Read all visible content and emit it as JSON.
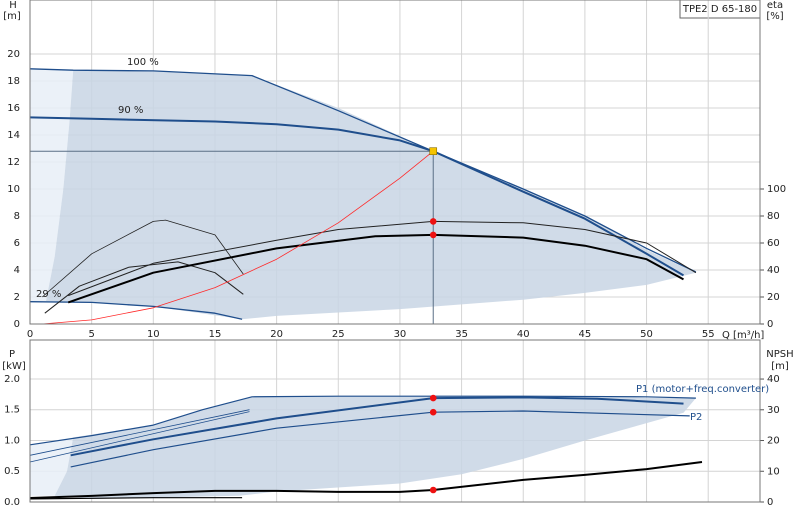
{
  "product": "TPE2 D 65-180",
  "chart_data": [
    {
      "type": "line",
      "y_label": "H",
      "y_unit": "[m]",
      "y2_label": "eta",
      "y2_unit": "[%]",
      "x_label": "Q [m³/h]",
      "xlim": [
        0,
        59.2
      ],
      "xticks": [
        0,
        5,
        10,
        15,
        20,
        25,
        30,
        35,
        40,
        45,
        50,
        55
      ],
      "xtick_labels": true,
      "ylim": [
        0,
        24
      ],
      "yticks": [
        0,
        2,
        4,
        6,
        8,
        10,
        12,
        14,
        16,
        18,
        20
      ],
      "y2lim": [
        0,
        240
      ],
      "y2ticks": [
        0,
        20,
        40,
        60,
        80,
        100
      ],
      "grid": true,
      "series": [
        {
          "color": "#e8eff7",
          "fill": true,
          "x": [
            0,
            3.5,
            3.2,
            2.7,
            2,
            1.3,
            0
          ],
          "values": [
            18.9,
            18.8,
            15,
            10,
            5,
            1.7,
            1.7
          ]
        },
        {
          "color": "#c8d5e4",
          "fill": true,
          "x": [
            3.5,
            10,
            18,
            25,
            32.7,
            40,
            45,
            50,
            54,
            50,
            45,
            40,
            30,
            20,
            17.2,
            10,
            5,
            1.3,
            2,
            2.7,
            3.2
          ],
          "values": [
            18.8,
            18.75,
            18.4,
            16,
            12.8,
            10,
            8,
            5.5,
            3.8,
            2.9,
            2.3,
            1.8,
            1.1,
            0.6,
            0.35,
            1.3,
            1.6,
            1.7,
            5,
            10,
            15
          ]
        },
        {
          "name": "100 %",
          "color": "#1f4e8c",
          "width": 1.3,
          "x": [
            0,
            3.5,
            10,
            18,
            25,
            32.7,
            40,
            45,
            50,
            54
          ],
          "values": [
            18.9,
            18.8,
            18.75,
            18.4,
            15.8,
            12.8,
            10,
            8,
            5.6,
            3.85
          ]
        },
        {
          "name": "90 %",
          "color": "#1f4e8c",
          "width": 2,
          "x": [
            0,
            5,
            15,
            20,
            25,
            30,
            32.7,
            40,
            45,
            50,
            53
          ],
          "values": [
            15.3,
            15.2,
            15.0,
            14.8,
            14.4,
            13.6,
            12.8,
            9.8,
            7.8,
            5.2,
            3.6
          ]
        },
        {
          "name": "29 %",
          "color": "#1f4e8c",
          "width": 1.3,
          "x": [
            0,
            5,
            10,
            15,
            17.2
          ],
          "values": [
            1.65,
            1.6,
            1.3,
            0.8,
            0.35
          ]
        },
        {
          "color": "#222222",
          "width": 0.8,
          "axis": "y2",
          "x": [
            1,
            5,
            10,
            11,
            15,
            17.3
          ],
          "values": [
            20,
            52,
            76,
            77,
            66,
            37
          ]
        },
        {
          "color": "#222222",
          "width": 1,
          "axis": "y2",
          "x": [
            1.2,
            4,
            8,
            12,
            15,
            17.3
          ],
          "values": [
            8,
            28,
            42,
            46,
            38,
            22
          ]
        },
        {
          "color": "#222222",
          "width": 1,
          "axis": "y2",
          "x": [
            3.1,
            10,
            20,
            25,
            32.7,
            40,
            45,
            50,
            54
          ],
          "values": [
            21,
            45,
            62,
            70,
            76,
            75,
            70,
            60,
            38
          ]
        },
        {
          "color": "#000000",
          "width": 2,
          "axis": "y2",
          "x": [
            3.1,
            10,
            20,
            28,
            32.7,
            40,
            45,
            50,
            53
          ],
          "values": [
            16,
            38,
            56,
            65,
            66,
            64,
            58,
            48,
            33
          ]
        },
        {
          "color": "#ff2a2a",
          "width": 0.8,
          "x": [
            1,
            5,
            10,
            15,
            20,
            25,
            30,
            32.7
          ],
          "values": [
            0,
            0.3,
            1.2,
            2.7,
            4.8,
            7.5,
            10.8,
            12.8
          ]
        },
        {
          "color": "#f5c400",
          "marker": "square",
          "guides": true,
          "x": [
            32.7
          ],
          "values": [
            12.8
          ]
        },
        {
          "color": "#ee1111",
          "marker": "dot",
          "axis": "y2",
          "x": [
            32.7,
            32.7
          ],
          "values": [
            76,
            66
          ]
        }
      ]
    },
    {
      "type": "line",
      "y_label": "P",
      "y_unit": "[kW]",
      "y2_label": "NPSH",
      "y2_unit": "[m]",
      "xlim": [
        0,
        59.2
      ],
      "xticks": [
        0,
        5,
        10,
        15,
        20,
        25,
        30,
        35,
        40,
        45,
        50,
        55
      ],
      "xtick_labels": false,
      "ylim": [
        0,
        2.634
      ],
      "yticks": [
        {
          "value": 0,
          "label": "0.0"
        },
        {
          "value": 0.5,
          "label": "0.5"
        },
        {
          "value": 1,
          "label": "1.0"
        },
        {
          "value": 1.5,
          "label": "1.5"
        },
        {
          "value": 2,
          "label": "2.0"
        }
      ],
      "y2lim": [
        0,
        52.7
      ],
      "y2ticks": [
        0,
        10,
        20,
        30,
        40
      ],
      "grid": true,
      "series": [
        {
          "color": "#e8eff7",
          "fill": true,
          "x": [
            0,
            3.5,
            3,
            2,
            0
          ],
          "values": [
            0.93,
            1.05,
            0.5,
            0.1,
            0.1
          ]
        },
        {
          "color": "#c8d5e4",
          "fill": true,
          "x": [
            3.5,
            10,
            14,
            18,
            32.7,
            54,
            53,
            45,
            40,
            35,
            30,
            20,
            17,
            5,
            2,
            3
          ],
          "values": [
            1.05,
            1.25,
            1.5,
            1.71,
            1.72,
            1.69,
            1.45,
            1.0,
            0.7,
            0.45,
            0.3,
            0.17,
            0.1,
            0.05,
            0.1,
            0.5
          ]
        },
        {
          "color": "#1f4e8c",
          "width": 1.2,
          "x": [
            0,
            5,
            10,
            14,
            18,
            25,
            32.7,
            40,
            50,
            54
          ],
          "values": [
            0.93,
            1.08,
            1.25,
            1.5,
            1.71,
            1.72,
            1.72,
            1.72,
            1.71,
            1.69
          ]
        },
        {
          "color": "#1f4e8c",
          "width": 0.8,
          "x": [
            0,
            17.8
          ],
          "values": [
            0.76,
            1.5
          ]
        },
        {
          "color": "#1f4e8c",
          "width": 0.8,
          "x": [
            0,
            17.8
          ],
          "values": [
            0.65,
            1.47
          ]
        },
        {
          "color": "#1f4e8c",
          "width": 2,
          "x": [
            3.3,
            10,
            20,
            32.7,
            40,
            46,
            53
          ],
          "values": [
            0.76,
            1.02,
            1.36,
            1.69,
            1.7,
            1.68,
            1.6
          ]
        },
        {
          "color": "#1f4e8c",
          "width": 1.2,
          "x": [
            3.3,
            10,
            20,
            32.7,
            40,
            53.5
          ],
          "values": [
            0.57,
            0.85,
            1.2,
            1.46,
            1.48,
            1.4
          ]
        },
        {
          "color": "#000000",
          "width": 1.2,
          "x": [
            0,
            5,
            10,
            17.2
          ],
          "values": [
            0.05,
            0.06,
            0.07,
            0.07
          ]
        },
        {
          "color": "#000000",
          "width": 2,
          "axis": "y2",
          "x": [
            0,
            5,
            10,
            15,
            20,
            25,
            30,
            32.7,
            40,
            45,
            50,
            54.5
          ],
          "values": [
            1.3,
            2,
            2.9,
            3.6,
            3.6,
            3.3,
            3.3,
            3.9,
            7.2,
            8.8,
            10.7,
            13
          ]
        },
        {
          "color": "#ee1111",
          "marker": "dot",
          "x": [
            32.7,
            32.7
          ],
          "values": [
            1.69,
            1.46
          ]
        },
        {
          "color": "#ee1111",
          "marker": "dot",
          "axis": "y2",
          "x": [
            32.7
          ],
          "values": [
            3.9
          ]
        }
      ],
      "annotations": [
        "P1 (motor+freq.converter)",
        "P2"
      ]
    }
  ]
}
